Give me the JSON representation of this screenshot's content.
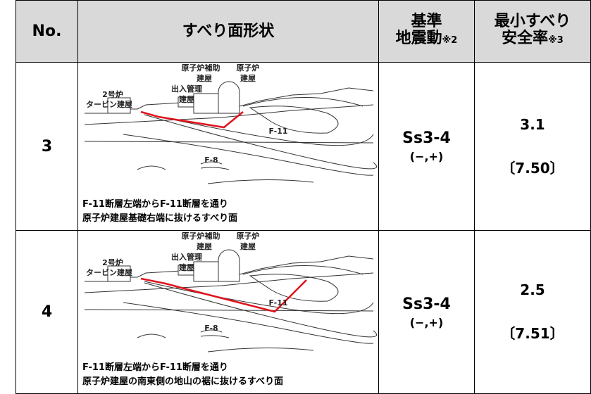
{
  "header": {
    "no": "No.",
    "shape": "すべり面形状",
    "motion": "基準",
    "motion2": "地震動",
    "motion_note": "※2",
    "factor": "最小すべり",
    "factor2": "安全率",
    "factor_note": "※3"
  },
  "rows": [
    {
      "no": "3",
      "labels": {
        "turbine1": "2号炉",
        "turbine2": "タービン建屋",
        "access1": "出入管理",
        "access2": "建屋",
        "aux1": "原子炉補助",
        "aux2": "建屋",
        "reactor1": "原子炉",
        "reactor2": "建屋",
        "f11": "F-11",
        "f8": "F-8"
      },
      "caption": [
        "F-11断層左端からF-11断層を通り",
        "原子炉建屋基礎右端に抜けるすべり面"
      ],
      "motion": "Ss3-4",
      "sign": "(−,+)",
      "factor": "3.1",
      "bracket": "〔7.50〕"
    },
    {
      "no": "4",
      "labels": {
        "turbine1": "2号炉",
        "turbine2": "タービン建屋",
        "access1": "出入管理",
        "access2": "建屋",
        "aux1": "原子炉補助",
        "aux2": "建屋",
        "reactor1": "原子炉",
        "reactor2": "建屋",
        "f11": "F-11",
        "f8": "F-8"
      },
      "caption": [
        "F-11断層左端からF-11断層を通り",
        "原子炉建屋の南東側の地山の裾に抜けるすべり面"
      ],
      "motion": "Ss3-4",
      "sign": "(−,+)",
      "factor": "2.5",
      "bracket": "〔7.51〕"
    }
  ]
}
